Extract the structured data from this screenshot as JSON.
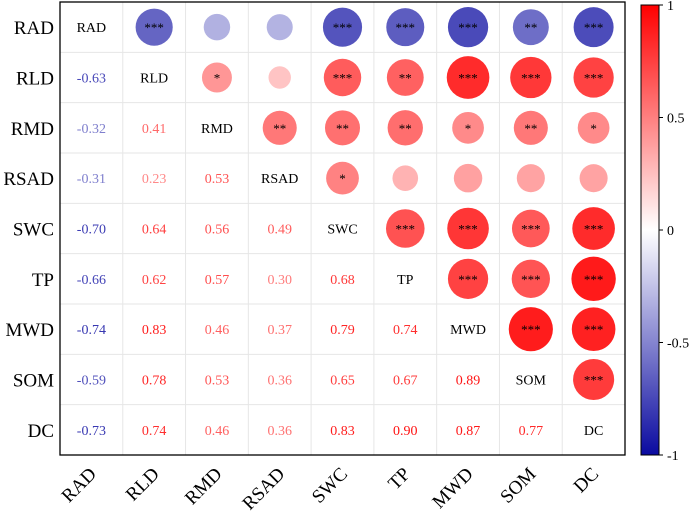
{
  "chart_data": {
    "type": "heatmap",
    "variables": [
      "RAD",
      "RLD",
      "RMD",
      "RSAD",
      "SWC",
      "TP",
      "MWD",
      "SOM",
      "DC"
    ],
    "lower_values": [
      [
        null,
        null,
        null,
        null,
        null,
        null,
        null,
        null,
        null
      ],
      [
        "-0.63",
        null,
        null,
        null,
        null,
        null,
        null,
        null,
        null
      ],
      [
        "-0.32",
        "0.41",
        null,
        null,
        null,
        null,
        null,
        null,
        null
      ],
      [
        "-0.31",
        "0.23",
        "0.53",
        null,
        null,
        null,
        null,
        null,
        null
      ],
      [
        "-0.70",
        "0.64",
        "0.56",
        "0.49",
        null,
        null,
        null,
        null,
        null
      ],
      [
        "-0.66",
        "0.62",
        "0.57",
        "0.30",
        "0.68",
        null,
        null,
        null,
        null
      ],
      [
        "-0.74",
        "0.83",
        "0.46",
        "0.37",
        "0.79",
        "0.74",
        null,
        null,
        null
      ],
      [
        "-0.59",
        "0.78",
        "0.53",
        "0.36",
        "0.65",
        "0.67",
        "0.89",
        null,
        null
      ],
      [
        "-0.73",
        "0.74",
        "0.46",
        "0.36",
        "0.83",
        "0.90",
        "0.87",
        "0.77",
        null
      ]
    ],
    "significance": [
      [
        null,
        "***",
        "",
        "",
        "***",
        "***",
        "***",
        "**",
        "***"
      ],
      [
        null,
        null,
        "*",
        "",
        "***",
        "**",
        "***",
        "***",
        "***"
      ],
      [
        null,
        null,
        null,
        "**",
        "**",
        "**",
        "*",
        "**",
        "*"
      ],
      [
        null,
        null,
        null,
        null,
        "*",
        "",
        "",
        "",
        ""
      ],
      [
        null,
        null,
        null,
        null,
        null,
        "***",
        "***",
        "***",
        "***"
      ],
      [
        null,
        null,
        null,
        null,
        null,
        null,
        "***",
        "***",
        "***"
      ],
      [
        null,
        null,
        null,
        null,
        null,
        null,
        null,
        "***",
        "***"
      ],
      [
        null,
        null,
        null,
        null,
        null,
        null,
        null,
        null,
        "***"
      ],
      [
        null,
        null,
        null,
        null,
        null,
        null,
        null,
        null,
        null
      ]
    ],
    "colorbar": {
      "range": [
        -1,
        1
      ],
      "ticks": [
        "1",
        "0.5",
        "0",
        "-0.5",
        "-1"
      ],
      "negative_color": "#0a0aa0",
      "zero_color": "#ffffff",
      "positive_color": "#ff0000"
    }
  }
}
